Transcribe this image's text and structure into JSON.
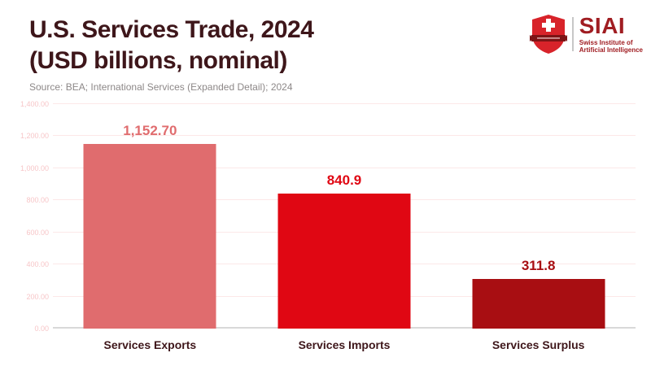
{
  "header": {
    "title_line1": "U.S. Services Trade, 2024",
    "title_line2": "(USD billions, nominal)",
    "source_note": "Source: BEA; International Services (Expanded Detail); 2024"
  },
  "logo": {
    "acronym": "SIAI",
    "subtitle_line1": "Swiss Institute of",
    "subtitle_line2": "Artificial Intelligence",
    "brand_color": "#a01d22",
    "shield_color": "#d8232a",
    "ribbon_color": "#7d1416"
  },
  "chart_data": {
    "type": "bar",
    "title": "U.S. Services Trade, 2024 (USD billions, nominal)",
    "xlabel": "",
    "ylabel": "",
    "categories": [
      "Services Exports",
      "Services Imports",
      "Services Surplus"
    ],
    "values": [
      1152.7,
      840.9,
      311.8
    ],
    "value_labels": [
      "1,152.70",
      "840.9",
      "311.8"
    ],
    "bar_colors": [
      "#e06c6e",
      "#e00713",
      "#a80e12"
    ],
    "ylim": [
      0,
      1400
    ],
    "ytick_interval": 200,
    "ytick_labels": [
      "0.00",
      "200.00",
      "400.00",
      "600.00",
      "800.00",
      "1,000.00",
      "1,200.00",
      "1,400.00"
    ],
    "grid": true,
    "legend": false
  },
  "colors": {
    "title": "#3e161a",
    "source": "#8d8888",
    "ytick": "#f7c6c8",
    "gridline": "#fce8e8",
    "axis_line": "#d9d9d9",
    "category_label": "#3e161a"
  }
}
